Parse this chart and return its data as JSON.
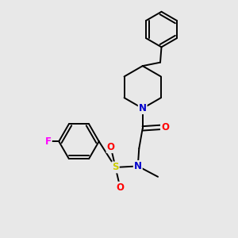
{
  "background_color": "#e8e8e8",
  "fig_size": [
    3.0,
    3.0
  ],
  "dpi": 100,
  "atom_colors": {
    "N": "#0000cc",
    "O": "#ff0000",
    "S": "#cccc00",
    "F": "#ff00ff",
    "C": "#000000"
  },
  "bond_color": "#000000",
  "bond_width": 1.4,
  "font_size_atom": 8.5
}
